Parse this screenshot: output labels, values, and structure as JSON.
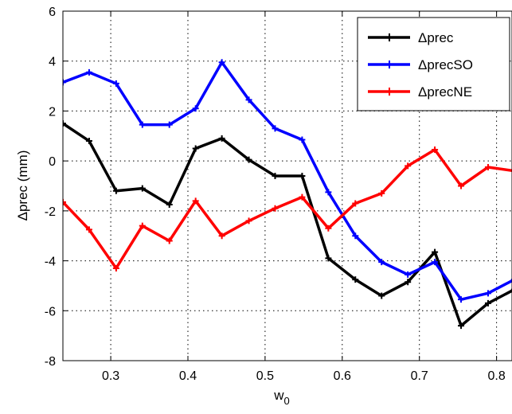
{
  "chart_data": {
    "type": "line",
    "title": "",
    "xlabel": "w",
    "xlabel_subscript": "0",
    "ylabel": "Δprec (mm)",
    "xlim": [
      0.238,
      0.82
    ],
    "ylim": [
      -8,
      6
    ],
    "xticks": [
      0.3,
      0.4,
      0.5,
      0.6,
      0.7,
      0.8
    ],
    "xtick_labels": [
      "0.3",
      "0.4",
      "0.5",
      "0.6",
      "0.7",
      "0.8"
    ],
    "yticks": [
      -8,
      -6,
      -4,
      -2,
      0,
      2,
      4,
      6
    ],
    "ytick_labels": [
      "-8",
      "-6",
      "-4",
      "-2",
      "0",
      "2",
      "4",
      "6"
    ],
    "grid": true,
    "legend_position": "top-right",
    "series": [
      {
        "name": "Δprec",
        "color": "#000000",
        "x": [
          0.238,
          0.272,
          0.307,
          0.341,
          0.376,
          0.41,
          0.444,
          0.479,
          0.513,
          0.548,
          0.582,
          0.617,
          0.651,
          0.685,
          0.72,
          0.754,
          0.789,
          0.823
        ],
        "y": [
          1.5,
          0.8,
          -1.2,
          -1.1,
          -1.75,
          0.5,
          0.9,
          0.05,
          -0.6,
          -0.6,
          -3.9,
          -4.75,
          -5.4,
          -4.85,
          -3.65,
          -6.6,
          -5.7,
          -5.15
        ]
      },
      {
        "name": "ΔprecSO",
        "color": "#0000ff",
        "x": [
          0.238,
          0.272,
          0.307,
          0.341,
          0.376,
          0.41,
          0.444,
          0.479,
          0.513,
          0.548,
          0.582,
          0.617,
          0.651,
          0.685,
          0.72,
          0.754,
          0.789,
          0.823
        ],
        "y": [
          3.15,
          3.55,
          3.1,
          1.45,
          1.45,
          2.1,
          3.95,
          2.45,
          1.3,
          0.85,
          -1.25,
          -3.0,
          -4.05,
          -4.55,
          -4.05,
          -5.55,
          -5.3,
          -4.75
        ]
      },
      {
        "name": "ΔprecNE",
        "color": "#ff0000",
        "x": [
          0.238,
          0.272,
          0.307,
          0.341,
          0.376,
          0.41,
          0.444,
          0.479,
          0.513,
          0.548,
          0.582,
          0.617,
          0.651,
          0.685,
          0.72,
          0.754,
          0.789,
          0.823
        ],
        "y": [
          -1.65,
          -2.75,
          -4.3,
          -2.6,
          -3.2,
          -1.6,
          -3.0,
          -2.4,
          -1.9,
          -1.45,
          -2.7,
          -1.7,
          -1.3,
          -0.2,
          0.45,
          -1.0,
          -0.25,
          -0.4
        ]
      }
    ]
  }
}
